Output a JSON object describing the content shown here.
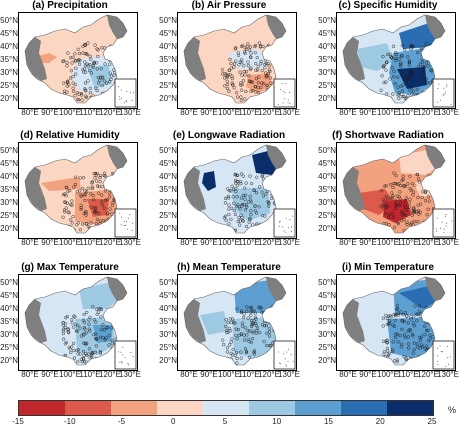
{
  "panels": [
    {
      "title": "(a) Precipitation",
      "pattern": "precipitation"
    },
    {
      "title": "(b) Air Pressure",
      "pattern": "pressure"
    },
    {
      "title": "(c) Specific Humidity",
      "pattern": "specific_humidity"
    },
    {
      "title": "(d) Relative Humidity",
      "pattern": "relative_humidity"
    },
    {
      "title": "(e) Longwave Radiation",
      "pattern": "longwave"
    },
    {
      "title": "(f) Shortwave Radiation",
      "pattern": "shortwave"
    },
    {
      "title": "(g) Max Temperature",
      "pattern": "max_temp"
    },
    {
      "title": "(h) Mean Temperature",
      "pattern": "mean_temp"
    },
    {
      "title": "(i) Min Temperature",
      "pattern": "min_temp"
    }
  ],
  "latitude_labels": [
    "50°N",
    "45°N",
    "40°N",
    "35°N",
    "30°N",
    "25°N",
    "20°N"
  ],
  "longitude_labels": [
    "80°E",
    "90°E",
    "100°E",
    "110°E",
    "120°E",
    "130°E"
  ],
  "colorbar": {
    "ticks": [
      "-15",
      "-10",
      "-5",
      "0",
      "5",
      "10",
      "15",
      "20",
      "25"
    ],
    "unit": "%",
    "colors": [
      "#c2272d",
      "#dc5a4a",
      "#f3a27f",
      "#fbd6c2",
      "#d6e6f4",
      "#9ec9e2",
      "#5c9fd0",
      "#2a6db3",
      "#0b2e6b"
    ]
  },
  "colors": {
    "no_data": "#7f7f7f",
    "station_marker": "#1a1a1a"
  }
}
